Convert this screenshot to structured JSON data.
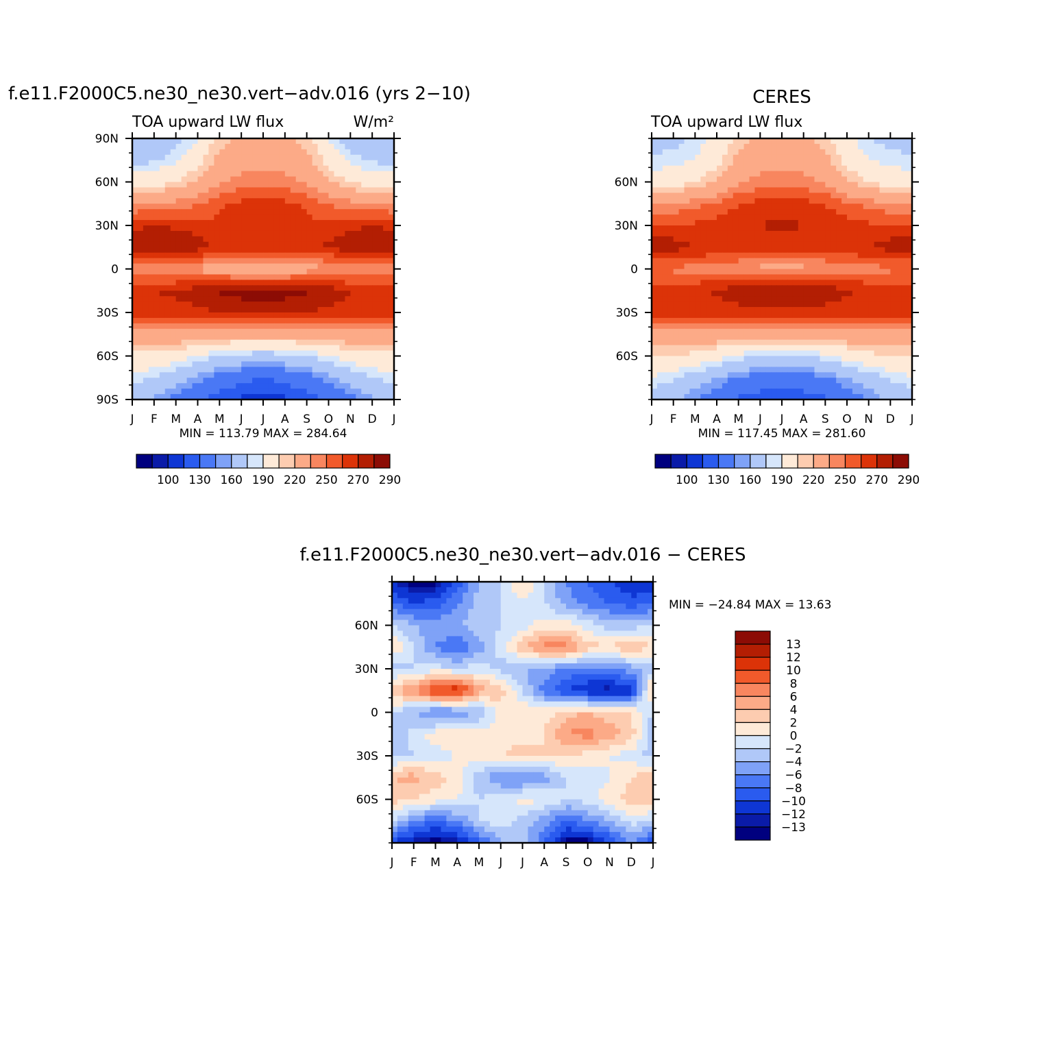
{
  "colors": {
    "abs_fill": [
      "#00007f",
      "#0a1ba8",
      "#0e36d4",
      "#2a5bef",
      "#4a78f5",
      "#7fa2f7",
      "#b0c8f8",
      "#d6e6fb",
      "#feead8",
      "#fdccb0",
      "#fcaa87",
      "#f8865f",
      "#f15a2b",
      "#dc3308",
      "#b31e03",
      "#8c0c05"
    ],
    "diff_fill": [
      "#00007f",
      "#0a1ba8",
      "#0e36d4",
      "#2a5bef",
      "#4a78f5",
      "#7fa2f7",
      "#b0c8f8",
      "#d6e6fb",
      "#feead8",
      "#fdccb0",
      "#fcaa87",
      "#f8865f",
      "#f15a2b",
      "#dc3308",
      "#b31e03",
      "#8c0c05"
    ]
  },
  "chart_data": [
    {
      "type": "heatmap",
      "title": "f.e11.F2000C5.ne30_ne30.vert−adv.016 (yrs 2−10)",
      "left_label": "TOA upward LW flux",
      "right_label": "W/m²",
      "x_tick_labels": [
        "J",
        "F",
        "M",
        "A",
        "M",
        "J",
        "J",
        "A",
        "S",
        "O",
        "N",
        "D",
        "J"
      ],
      "y_tick_labels": [
        "90N",
        "60N",
        "30N",
        "0",
        "30S",
        "60S",
        "90S"
      ],
      "y_tick_values": [
        90,
        60,
        30,
        0,
        -30,
        -60,
        -90
      ],
      "ylim": [
        -90,
        90
      ],
      "stats": "MIN =  113.79 MAX =  284.64",
      "colorbar_labels": [
        "100",
        "130",
        "160",
        "190",
        "220",
        "250",
        "270",
        "290"
      ],
      "levels": [
        90,
        100,
        120,
        130,
        150,
        160,
        180,
        190,
        210,
        220,
        240,
        250,
        260,
        270,
        280,
        290
      ],
      "lat": [
        90,
        75,
        60,
        45,
        30,
        15,
        0,
        -15,
        -30,
        -45,
        -60,
        -75,
        -90
      ],
      "months": [
        "J",
        "F",
        "M",
        "A",
        "M",
        "J",
        "J",
        "A",
        "S",
        "O",
        "N",
        "D",
        "J"
      ],
      "values": [
        [
          160,
          162,
          172,
          190,
          215,
          222,
          225,
          222,
          215,
          190,
          170,
          162,
          160
        ],
        [
          175,
          178,
          188,
          205,
          225,
          232,
          235,
          232,
          225,
          205,
          185,
          178,
          175
        ],
        [
          200,
          202,
          210,
          222,
          238,
          245,
          248,
          245,
          238,
          222,
          208,
          202,
          200
        ],
        [
          238,
          240,
          244,
          250,
          258,
          262,
          265,
          262,
          258,
          250,
          244,
          240,
          238
        ],
        [
          268,
          270,
          268,
          264,
          262,
          266,
          270,
          266,
          262,
          264,
          268,
          270,
          268
        ],
        [
          276,
          279,
          282,
          276,
          266,
          266,
          268,
          266,
          266,
          272,
          276,
          278,
          276
        ],
        [
          242,
          242,
          240,
          236,
          232,
          228,
          226,
          228,
          234,
          238,
          242,
          242,
          242
        ],
        [
          268,
          270,
          272,
          276,
          282,
          285,
          286,
          285,
          282,
          276,
          270,
          268,
          268
        ],
        [
          266,
          266,
          266,
          268,
          270,
          272,
          272,
          272,
          270,
          268,
          266,
          266,
          266
        ],
        [
          235,
          235,
          234,
          232,
          230,
          228,
          228,
          228,
          230,
          232,
          234,
          235,
          235
        ],
        [
          205,
          205,
          200,
          190,
          180,
          175,
          172,
          175,
          180,
          190,
          200,
          205,
          205
        ],
        [
          185,
          180,
          168,
          155,
          142,
          135,
          130,
          135,
          142,
          155,
          168,
          180,
          185
        ],
        [
          165,
          158,
          145,
          132,
          122,
          118,
          116,
          118,
          122,
          132,
          145,
          158,
          165
        ]
      ]
    },
    {
      "type": "heatmap",
      "title": "CERES",
      "left_label": "TOA upward LW flux",
      "x_tick_labels": [
        "J",
        "F",
        "M",
        "A",
        "M",
        "J",
        "J",
        "A",
        "S",
        "O",
        "N",
        "D",
        "J"
      ],
      "y_tick_labels": [
        "60N",
        "30N",
        "0",
        "30S",
        "60S"
      ],
      "y_tick_values": [
        60,
        30,
        0,
        -30,
        -60
      ],
      "ylim": [
        -90,
        90
      ],
      "stats": "MIN =  117.45 MAX =  281.60",
      "colorbar_labels": [
        "100",
        "130",
        "160",
        "190",
        "220",
        "250",
        "270",
        "290"
      ],
      "levels": [
        90,
        100,
        120,
        130,
        150,
        160,
        180,
        190,
        210,
        220,
        240,
        250,
        260,
        270,
        280,
        290
      ],
      "lat": [
        90,
        75,
        60,
        45,
        30,
        15,
        0,
        -15,
        -30,
        -45,
        -60,
        -75,
        -90
      ],
      "months": [
        "J",
        "F",
        "M",
        "A",
        "M",
        "J",
        "J",
        "A",
        "S",
        "O",
        "N",
        "D",
        "J"
      ],
      "values": [
        [
          172,
          175,
          182,
          195,
          215,
          222,
          225,
          222,
          215,
          195,
          180,
          175,
          172
        ],
        [
          182,
          185,
          192,
          205,
          225,
          232,
          235,
          232,
          225,
          205,
          190,
          185,
          182
        ],
        [
          200,
          202,
          210,
          222,
          238,
          245,
          248,
          245,
          238,
          222,
          208,
          202,
          200
        ],
        [
          240,
          242,
          246,
          252,
          260,
          264,
          266,
          264,
          260,
          252,
          246,
          242,
          240
        ],
        [
          262,
          262,
          262,
          264,
          266,
          270,
          272,
          270,
          266,
          264,
          262,
          262,
          262
        ],
        [
          276,
          275,
          270,
          268,
          266,
          266,
          266,
          266,
          266,
          268,
          270,
          275,
          276
        ],
        [
          248,
          248,
          246,
          244,
          240,
          236,
          234,
          236,
          240,
          244,
          246,
          248,
          248
        ],
        [
          264,
          265,
          268,
          272,
          276,
          279,
          281,
          279,
          276,
          272,
          268,
          265,
          264
        ],
        [
          264,
          264,
          264,
          265,
          266,
          268,
          268,
          268,
          266,
          265,
          264,
          264,
          264
        ],
        [
          236,
          236,
          235,
          234,
          232,
          230,
          230,
          230,
          232,
          234,
          235,
          236,
          236
        ],
        [
          210,
          210,
          205,
          196,
          186,
          180,
          178,
          180,
          186,
          196,
          205,
          210,
          210
        ],
        [
          188,
          182,
          172,
          160,
          148,
          142,
          138,
          142,
          148,
          160,
          172,
          182,
          188
        ],
        [
          170,
          162,
          150,
          138,
          128,
          122,
          120,
          122,
          128,
          138,
          150,
          162,
          170
        ]
      ]
    },
    {
      "type": "heatmap",
      "title": "f.e11.F2000C5.ne30_ne30.vert−adv.016 − CERES",
      "x_tick_labels": [
        "J",
        "F",
        "M",
        "A",
        "M",
        "J",
        "J",
        "A",
        "S",
        "O",
        "N",
        "D",
        "J"
      ],
      "y_tick_labels": [
        "60N",
        "30N",
        "0",
        "30S",
        "60S"
      ],
      "y_tick_values": [
        60,
        30,
        0,
        -30,
        -60
      ],
      "ylim": [
        -90,
        90
      ],
      "stats": "MIN = −24.84 MAX =   13.63",
      "colorbar_labels": [
        "13",
        "12",
        "10",
        "8",
        "6",
        "4",
        "2",
        "0",
        "−2",
        "−4",
        "−6",
        "−8",
        "−10",
        "−12",
        "−13"
      ],
      "levels": [
        -13,
        -12,
        -10,
        -8,
        -6,
        -4,
        -2,
        0,
        2,
        4,
        6,
        8,
        10,
        12,
        13
      ],
      "lat": [
        90,
        75,
        60,
        45,
        30,
        15,
        0,
        -15,
        -30,
        -45,
        -60,
        -75,
        -90
      ],
      "months": [
        "J",
        "F",
        "M",
        "A",
        "M",
        "J",
        "J",
        "A",
        "S",
        "O",
        "N",
        "D",
        "J"
      ],
      "values": [
        [
          -12,
          -14,
          -14,
          -10,
          -4,
          -2,
          2,
          -2,
          -6,
          -8,
          -10,
          -12,
          -12
        ],
        [
          -8,
          -10,
          -9,
          -6,
          -3,
          -2,
          0,
          -2,
          -5,
          -7,
          -8,
          -9,
          -8
        ],
        [
          -2,
          -4,
          -5,
          -4,
          -3,
          -2,
          -1,
          1,
          1,
          -1,
          -3,
          -3,
          -2
        ],
        [
          2,
          -2,
          -6,
          -8,
          -5,
          -1,
          4,
          7,
          7,
          3,
          2,
          4,
          2
        ],
        [
          -3,
          -2,
          -1,
          -2,
          -1,
          -3,
          -4,
          -5,
          -6,
          -7,
          -6,
          -5,
          -3
        ],
        [
          4,
          6,
          11,
          12,
          5,
          3,
          -2,
          -7,
          -10,
          -12,
          -13,
          -12,
          4
        ],
        [
          -2,
          -4,
          -7,
          -6,
          -4,
          1,
          2,
          1,
          3,
          4,
          3,
          2,
          -2
        ],
        [
          -4,
          -1,
          1,
          2,
          1,
          1,
          1,
          2,
          6,
          7,
          5,
          3,
          -4
        ],
        [
          -3,
          -2,
          -1,
          0,
          1,
          2,
          3,
          2,
          2,
          1,
          0,
          -1,
          -3
        ],
        [
          4,
          5,
          3,
          1,
          -3,
          -6,
          -7,
          -5,
          -2,
          -1,
          0,
          2,
          4
        ],
        [
          3,
          2,
          1,
          0,
          -2,
          -1,
          1,
          0,
          -2,
          -1,
          1,
          3,
          3
        ],
        [
          -2,
          -6,
          -8,
          -6,
          -2,
          -1,
          -3,
          -5,
          -8,
          -6,
          -4,
          -1,
          -2
        ],
        [
          -10,
          -13,
          -14,
          -13,
          -9,
          -4,
          -3,
          -8,
          -14,
          -14,
          -10,
          -6,
          -10
        ]
      ]
    }
  ]
}
